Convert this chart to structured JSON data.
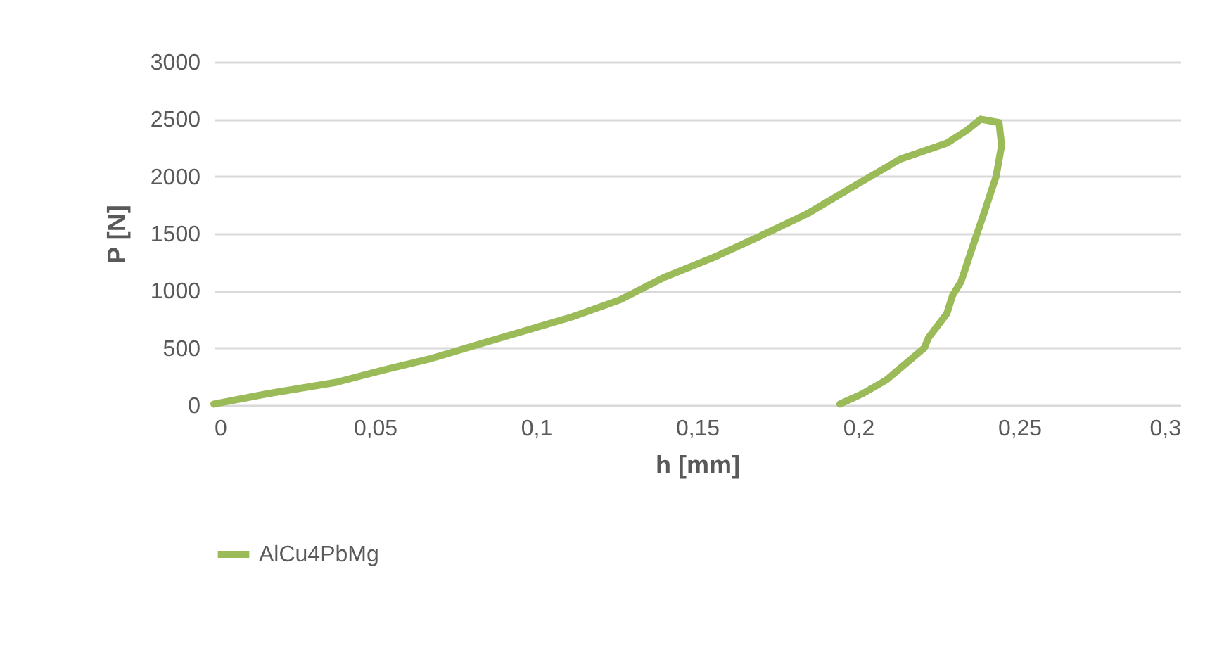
{
  "chart_data": {
    "type": "line",
    "xlabel": "h [mm]",
    "ylabel": "P [N]",
    "xlim": [
      0,
      0.3
    ],
    "ylim": [
      0,
      3000
    ],
    "xticks": [
      0,
      {
        "value": 0.05,
        "label": "0,05"
      },
      {
        "value": 0.1,
        "label": "0,1"
      },
      {
        "value": 0.15,
        "label": "0,15"
      },
      {
        "value": 0.2,
        "label": "0,2"
      },
      {
        "value": 0.25,
        "label": "0,25"
      },
      {
        "value": 0.3,
        "label": "0,3"
      }
    ],
    "yticks": [
      0,
      500,
      1000,
      1500,
      2000,
      2500,
      3000
    ],
    "grid": "y",
    "legend": "bottom",
    "marker": "none",
    "line_style": "solid",
    "series": [
      {
        "name": "AlCu4PbMg",
        "color": "#9bbb59",
        "x": [
          0,
          0.0166,
          0.038,
          0.053,
          0.0677,
          0.082,
          0.0965,
          0.111,
          0.126,
          0.14,
          0.155,
          0.169,
          0.184,
          0.199,
          0.213,
          0.2275,
          0.2336,
          0.238,
          0.2437,
          0.2445,
          0.2428,
          0.2393,
          0.2358,
          0.2319,
          0.2293,
          0.2275,
          0.2218,
          0.2205,
          0.2087,
          0.2013,
          0.1943
        ],
        "values": [
          10,
          100,
          200,
          310,
          410,
          530,
          650,
          770,
          920,
          1120,
          1290,
          1470,
          1670,
          1920,
          2150,
          2290,
          2400,
          2500,
          2470,
          2270,
          2000,
          1700,
          1410,
          1080,
          960,
          800,
          590,
          500,
          220,
          100,
          10
        ]
      }
    ]
  }
}
